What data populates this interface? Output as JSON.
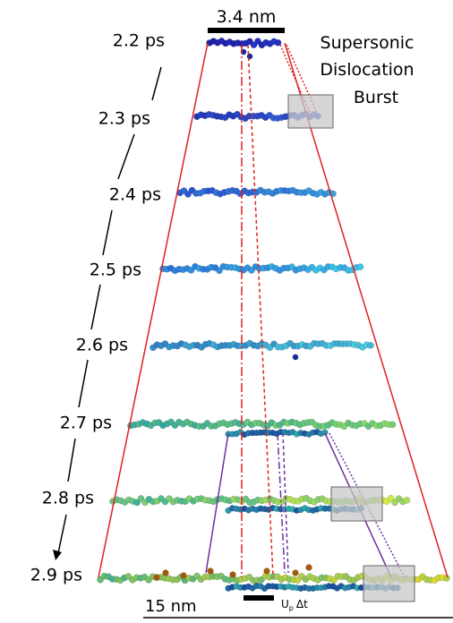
{
  "scale_bar_top": "3.4 nm",
  "annotation": [
    "Supersonic",
    "Dislocation",
    "Burst"
  ],
  "time_labels": [
    "2.2 ps",
    "2.3 ps",
    "2.4 ps",
    "2.5 ps",
    "2.6 ps",
    "2.7 ps",
    "2.8 ps",
    "2.9 ps"
  ],
  "scale_bar_bottom": "15 nm",
  "velocity_label": {
    "main": "U",
    "sub": "p",
    "suffix": "Δt"
  }
}
